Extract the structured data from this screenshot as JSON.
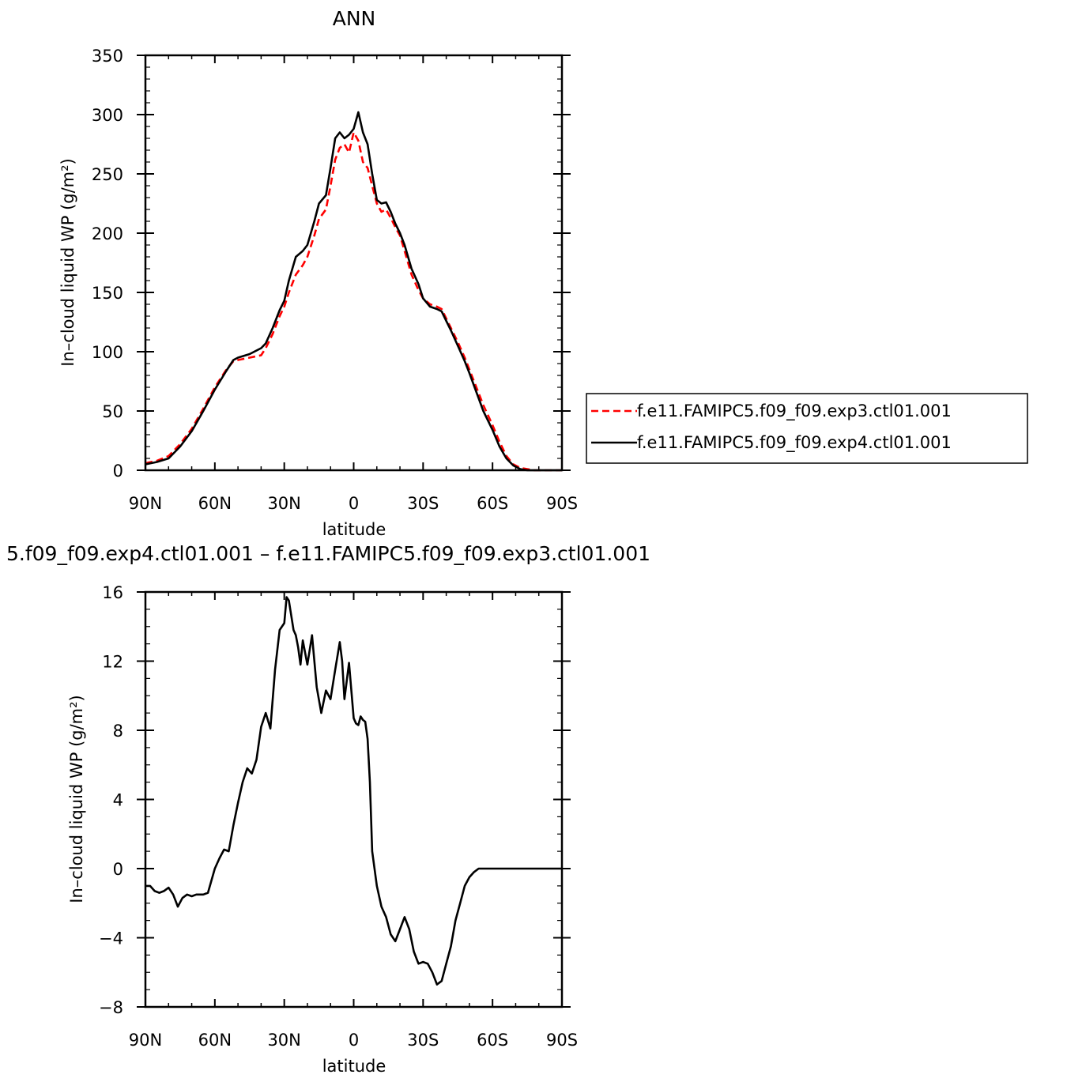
{
  "figure": {
    "top_title": "ANN",
    "bottom_title": "5.f09_f09.exp4.ctl01.001  –  f.e11.FAMIPC5.f09_f09.exp3.ctl01.001"
  },
  "chart_data": [
    {
      "type": "line",
      "title": "ANN",
      "xlabel": "latitude",
      "ylabel": "In–cloud liquid WP (g/m²)",
      "x_tick_labels": [
        "90N",
        "60N",
        "30N",
        "0",
        "30S",
        "60S",
        "90S"
      ],
      "x_tick_values": [
        90,
        60,
        30,
        0,
        -30,
        -60,
        -90
      ],
      "xlim": [
        90,
        -90
      ],
      "y_tick_labels": [
        "0",
        "50",
        "100",
        "150",
        "200",
        "250",
        "300",
        "350"
      ],
      "ylim": [
        0,
        350
      ],
      "legend": {
        "placement": "right",
        "entries": [
          {
            "label": "f.e11.FAMIPC5.f09_f09.exp3.ctl01.001",
            "color": "#ff0000",
            "dash": "dashed"
          },
          {
            "label": "f.e11.FAMIPC5.f09_f09.exp4.ctl01.001",
            "color": "#000000",
            "dash": "solid"
          }
        ]
      },
      "series": [
        {
          "name": "f.e11.FAMIPC5.f09_f09.exp3.ctl01.001",
          "color": "#ff0000",
          "dash": "dashed",
          "x": [
            90,
            85,
            80,
            75,
            70,
            65,
            60,
            55,
            52,
            50,
            45,
            40,
            38,
            35,
            32,
            30,
            28,
            25,
            22,
            20,
            17,
            15,
            12,
            10,
            8,
            6,
            4,
            2,
            0,
            -2,
            -4,
            -6,
            -8,
            -10,
            -12,
            -14,
            -16,
            -18,
            -20,
            -22,
            -25,
            -28,
            -30,
            -33,
            -36,
            -38,
            -40,
            -42,
            -45,
            -48,
            -50,
            -53,
            -56,
            -60,
            -63,
            -66,
            -69,
            -72,
            -75,
            -78,
            -80,
            -85,
            -90
          ],
          "y": [
            6,
            8,
            12,
            22,
            35,
            52,
            70,
            85,
            92,
            93,
            95,
            97,
            103,
            115,
            130,
            138,
            150,
            165,
            173,
            180,
            198,
            212,
            220,
            240,
            262,
            272,
            275,
            268,
            285,
            278,
            260,
            255,
            240,
            225,
            218,
            220,
            213,
            205,
            198,
            185,
            165,
            152,
            145,
            140,
            138,
            136,
            128,
            120,
            108,
            95,
            85,
            70,
            55,
            38,
            24,
            12,
            5,
            2,
            1,
            0,
            0,
            0,
            0
          ]
        },
        {
          "name": "f.e11.FAMIPC5.f09_f09.exp4.ctl01.001",
          "color": "#000000",
          "dash": "solid",
          "x": [
            90,
            85,
            80,
            75,
            70,
            65,
            60,
            55,
            52,
            50,
            45,
            40,
            38,
            35,
            32,
            30,
            28,
            25,
            22,
            20,
            17,
            15,
            12,
            10,
            8,
            6,
            4,
            2,
            0,
            -2,
            -4,
            -6,
            -8,
            -10,
            -12,
            -14,
            -16,
            -18,
            -20,
            -22,
            -25,
            -28,
            -30,
            -33,
            -36,
            -38,
            -40,
            -42,
            -45,
            -48,
            -50,
            -53,
            -56,
            -60,
            -63,
            -66,
            -69,
            -72,
            -75,
            -78,
            -80,
            -85,
            -90
          ],
          "y": [
            5,
            7,
            10,
            20,
            33,
            50,
            68,
            84,
            93,
            95,
            98,
            103,
            107,
            120,
            135,
            143,
            160,
            180,
            185,
            190,
            210,
            225,
            232,
            255,
            280,
            285,
            280,
            283,
            288,
            302,
            285,
            275,
            250,
            228,
            225,
            226,
            218,
            208,
            200,
            190,
            170,
            157,
            145,
            138,
            136,
            134,
            126,
            118,
            105,
            92,
            82,
            66,
            50,
            34,
            20,
            10,
            4,
            1,
            0,
            0,
            0,
            0,
            0
          ]
        }
      ]
    },
    {
      "type": "line",
      "title": "5.f09_f09.exp4.ctl01.001  –  f.e11.FAMIPC5.f09_f09.exp3.ctl01.001",
      "xlabel": "latitude",
      "ylabel": "In–cloud liquid WP (g/m²)",
      "x_tick_labels": [
        "90N",
        "60N",
        "30N",
        "0",
        "30S",
        "60S",
        "90S"
      ],
      "x_tick_values": [
        90,
        60,
        30,
        0,
        -30,
        -60,
        -90
      ],
      "xlim": [
        90,
        -90
      ],
      "y_tick_labels": [
        "−8",
        "−4",
        "0",
        "4",
        "8",
        "12",
        "16"
      ],
      "ylim": [
        -8,
        16
      ],
      "series": [
        {
          "color": "#000000",
          "dash": "solid",
          "x": [
            90,
            88,
            86,
            84,
            82,
            80,
            78,
            76,
            74,
            72,
            70,
            68,
            65,
            63,
            60,
            58,
            56,
            54,
            52,
            50,
            48,
            46,
            44,
            42,
            40,
            38,
            36,
            34,
            32,
            30,
            29,
            28,
            26,
            25,
            24,
            23,
            22,
            21,
            20,
            18,
            16,
            14,
            12,
            10,
            8,
            6,
            5,
            4,
            2,
            0,
            -1,
            -2,
            -3,
            -4,
            -5,
            -6,
            -7,
            -8,
            -10,
            -12,
            -14,
            -16,
            -18,
            -20,
            -22,
            -24,
            -26,
            -28,
            -30,
            -32,
            -34,
            -36,
            -38,
            -40,
            -42,
            -44,
            -46,
            -48,
            -50,
            -52,
            -54,
            -56,
            -58,
            -60,
            -62,
            -64,
            -66,
            -68,
            -70,
            -72,
            -75,
            -80,
            -85,
            -90
          ],
          "y": [
            -1,
            -1,
            -1.3,
            -1.4,
            -1.3,
            -1.1,
            -1.5,
            -2.2,
            -1.7,
            -1.5,
            -1.6,
            -1.5,
            -1.5,
            -1.4,
            0,
            0.6,
            1.1,
            1.0,
            2.5,
            3.8,
            5.0,
            5.8,
            5.5,
            6.3,
            8.2,
            9.0,
            8.1,
            11.5,
            13.8,
            14.2,
            15.7,
            15.5,
            13.8,
            13.5,
            12.8,
            11.8,
            13.2,
            12.5,
            11.8,
            13.5,
            10.5,
            9.0,
            10.3,
            9.8,
            11.5,
            13.1,
            12.0,
            9.8,
            11.9,
            8.7,
            8.4,
            8.3,
            8.8,
            8.6,
            8.5,
            7.5,
            5.0,
            1.0,
            -1.0,
            -2.2,
            -2.8,
            -3.8,
            -4.2,
            -3.5,
            -2.8,
            -3.5,
            -4.8,
            -5.5,
            -5.4,
            -5.5,
            -6.0,
            -6.7,
            -6.5,
            -5.5,
            -4.5,
            -3.0,
            -2.0,
            -1.0,
            -0.5,
            -0.2,
            0,
            0,
            0,
            0,
            0,
            0,
            0,
            0,
            0,
            0,
            0,
            0,
            0,
            0
          ]
        }
      ]
    }
  ]
}
